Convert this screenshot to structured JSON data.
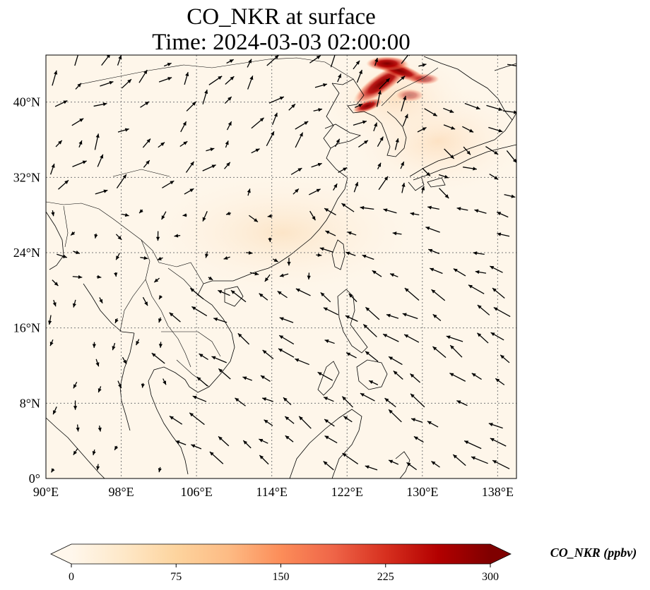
{
  "title": {
    "line1": "CO_NKR at surface",
    "line2": "Time: 2024-03-03 02:00:00"
  },
  "map": {
    "lon_range": [
      90,
      140
    ],
    "lat_range": [
      0,
      45
    ],
    "lon_ticks": [
      "90°E",
      "98°E",
      "106°E",
      "114°E",
      "122°E",
      "130°E",
      "138°E"
    ],
    "lat_ticks": [
      "0°",
      "8°N",
      "16°N",
      "24°N",
      "32°N",
      "40°N"
    ],
    "gridlines": true,
    "gridline_style": "dotted",
    "coastlines": true,
    "borders": true,
    "wind_vectors": true,
    "colors": {
      "background": "#fef6ea",
      "coastline": "#000000",
      "grid": "#7a7a7a",
      "vector": "#000000"
    }
  },
  "colorbar": {
    "label": "CO_NKR (ppbv)",
    "ticks": [
      "0",
      "75",
      "150",
      "225",
      "300"
    ],
    "min": 0,
    "max": 300,
    "extend": "both",
    "colormap": "OrRd",
    "stops": [
      "#fff7ec",
      "#fee8c8",
      "#fdd49e",
      "#fdbb84",
      "#fc8d59",
      "#ef6548",
      "#d7301f",
      "#b30000",
      "#7f0000"
    ]
  },
  "field": {
    "description_hot_spot": "high CO concentration over northeast China / Korea border",
    "hotspot_values_ppbv": [
      300,
      260,
      220,
      180,
      150
    ]
  }
}
